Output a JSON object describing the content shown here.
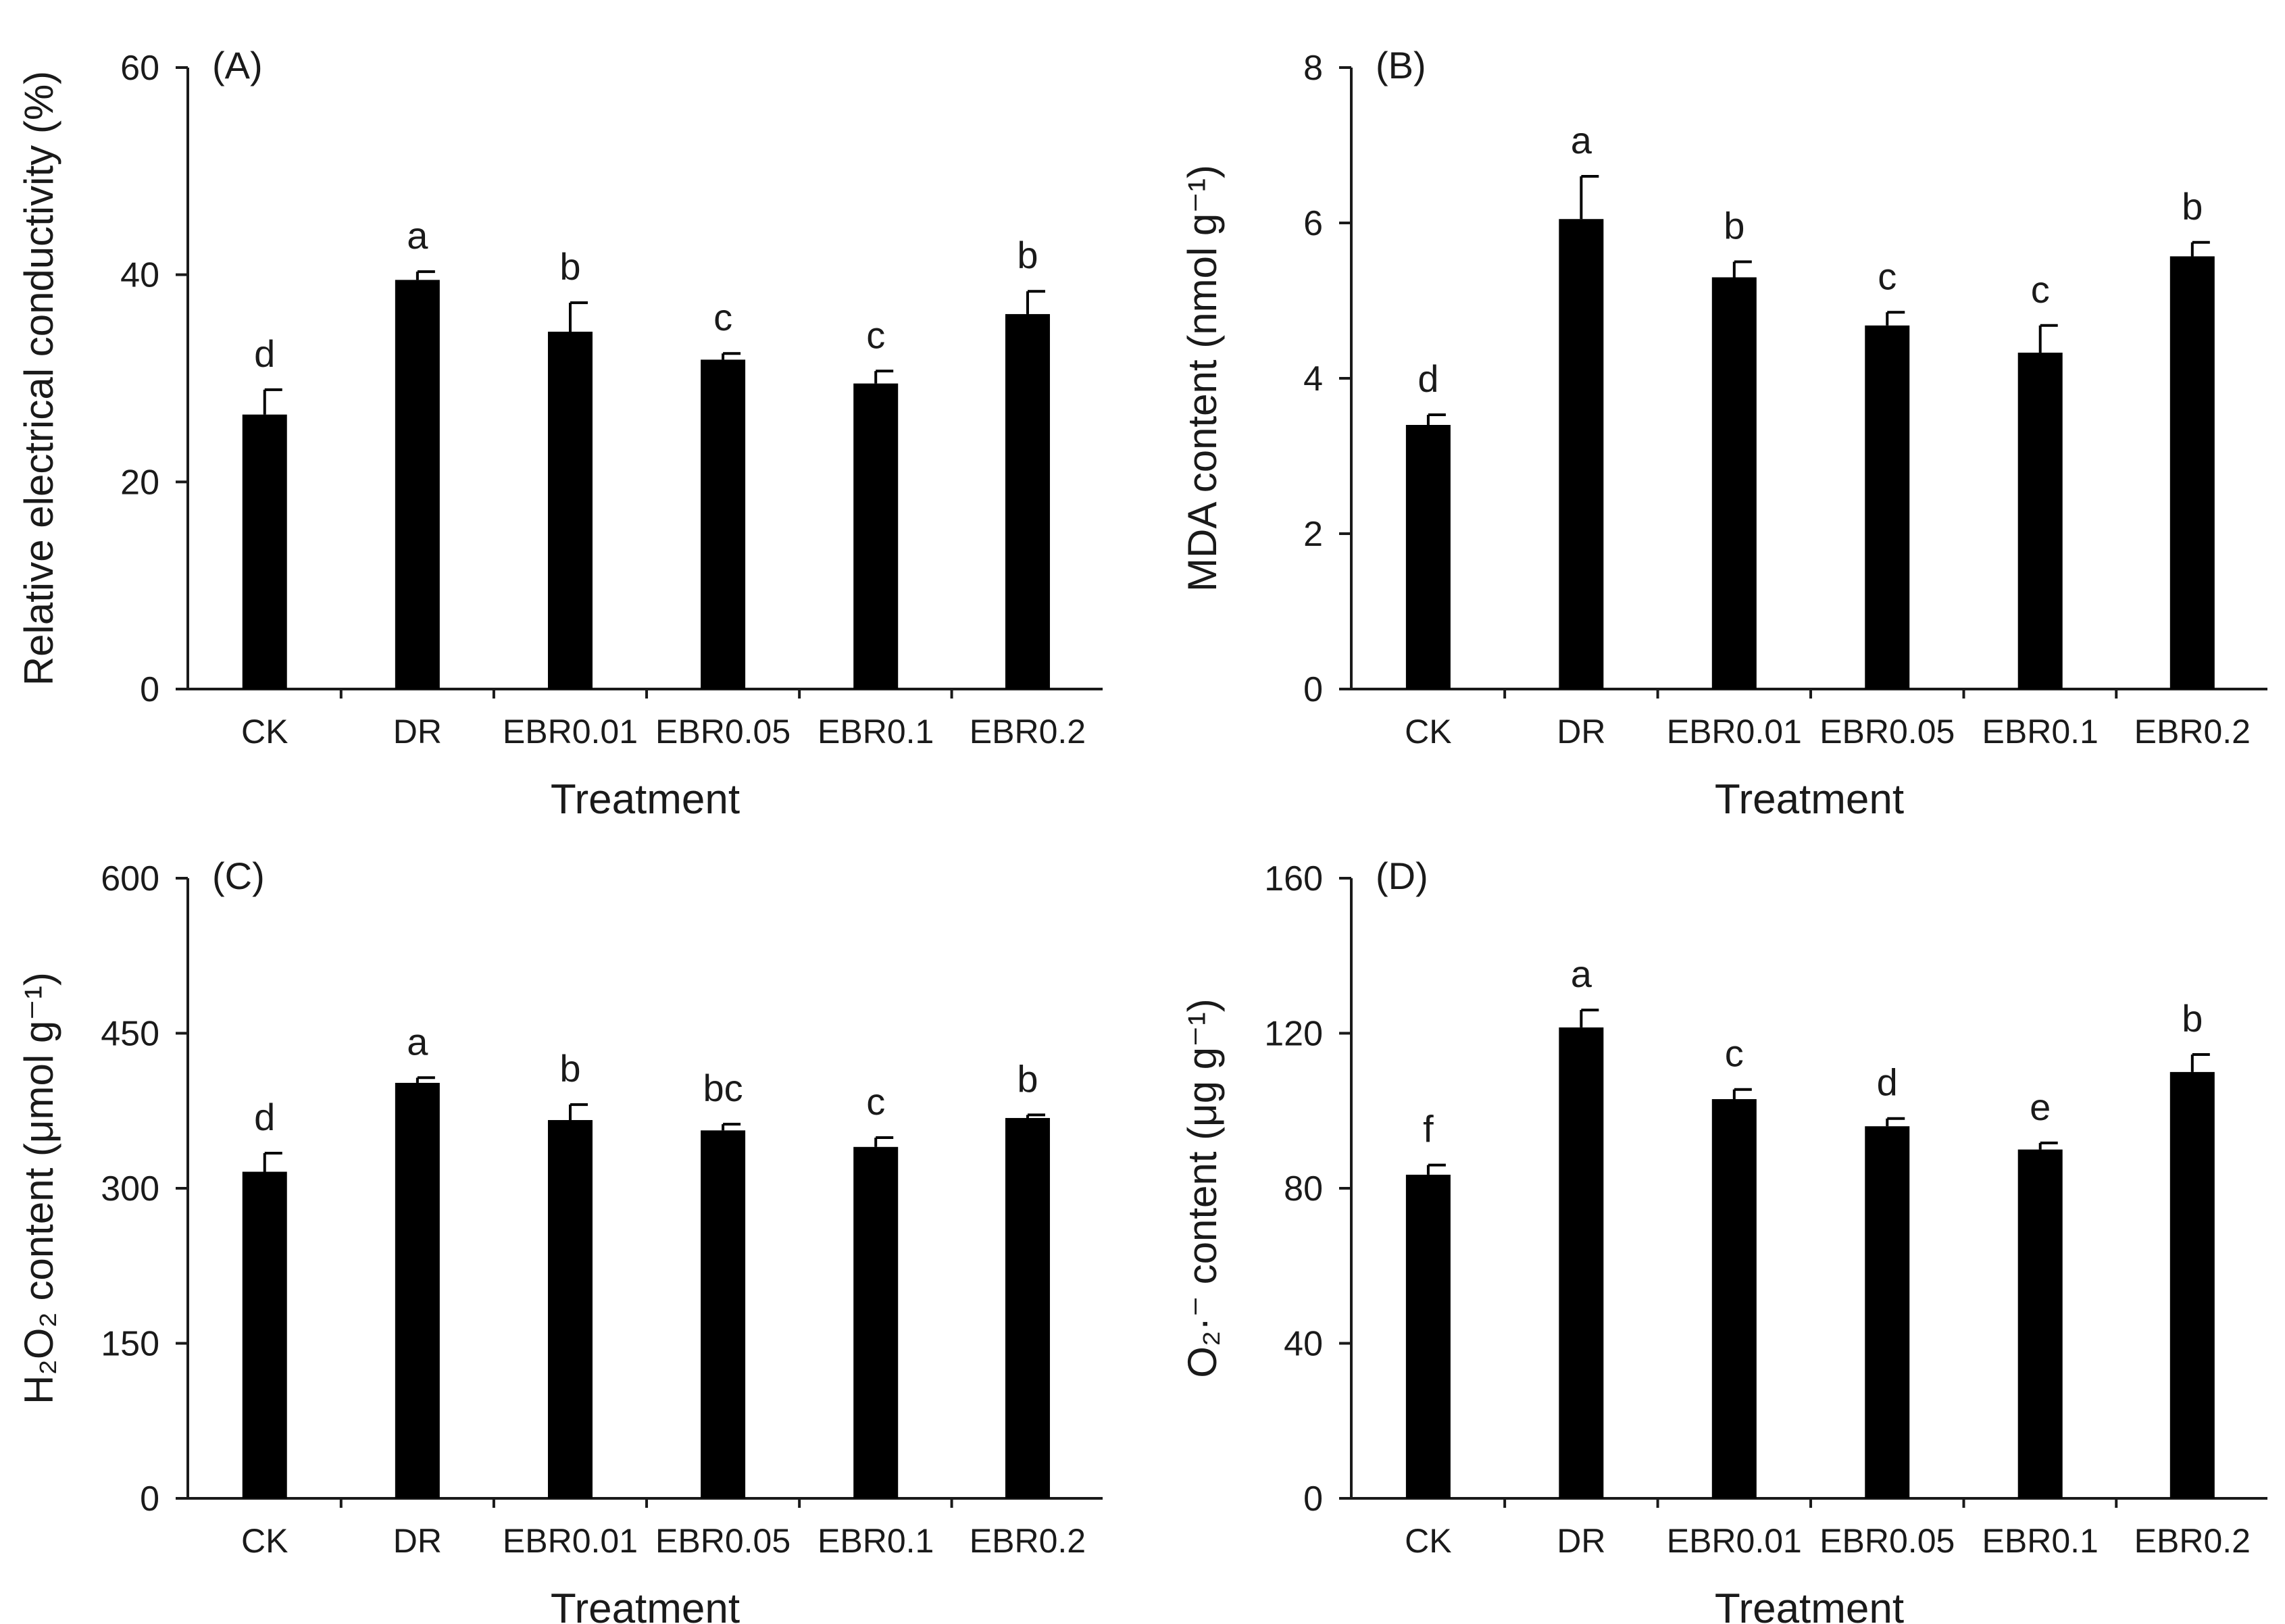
{
  "figure": {
    "categories": [
      "CK",
      "DR",
      "EBR0.01",
      "EBR0.05",
      "EBR0.1",
      "EBR0.2"
    ],
    "xlabel": "Treatment"
  },
  "chart_data": [
    {
      "type": "bar",
      "panel": "(A)",
      "title": "",
      "ylabel": "Relative electrical conductivity (%)",
      "xlabel": "Treatment",
      "categories": [
        "CK",
        "DR",
        "EBR0.01",
        "EBR0.05",
        "EBR0.1",
        "EBR0.2"
      ],
      "values": [
        26.5,
        39.5,
        34.5,
        31.8,
        29.5,
        36.2
      ],
      "errors": [
        2.4,
        0.8,
        2.8,
        0.6,
        1.2,
        2.2
      ],
      "significance": [
        "d",
        "a",
        "b",
        "c",
        "c",
        "b"
      ],
      "ylim": [
        0,
        60
      ],
      "yticks": [
        "0",
        "20",
        "40",
        "60"
      ]
    },
    {
      "type": "bar",
      "panel": "(B)",
      "title": "",
      "ylabel": "MDA content (nmol g⁻¹)",
      "xlabel": "Treatment",
      "categories": [
        "CK",
        "DR",
        "EBR0.01",
        "EBR0.05",
        "EBR0.1",
        "EBR0.2"
      ],
      "values": [
        3.4,
        6.05,
        5.3,
        4.68,
        4.33,
        5.57
      ],
      "errors": [
        0.13,
        0.55,
        0.2,
        0.17,
        0.35,
        0.18
      ],
      "significance": [
        "d",
        "a",
        "b",
        "c",
        "c",
        "b"
      ],
      "ylim": [
        0,
        8
      ],
      "yticks": [
        "0",
        "2",
        "4",
        "6",
        "8"
      ]
    },
    {
      "type": "bar",
      "panel": "(C)",
      "title": "",
      "ylabel": "H₂O₂ content (μmol g⁻¹)",
      "xlabel": "Treatment",
      "categories": [
        "CK",
        "DR",
        "EBR0.01",
        "EBR0.05",
        "EBR0.1",
        "EBR0.2"
      ],
      "values": [
        316,
        402,
        366,
        356,
        340,
        368
      ],
      "errors": [
        18,
        5,
        15,
        6,
        9,
        3
      ],
      "significance": [
        "d",
        "a",
        "b",
        "bc",
        "c",
        "b"
      ],
      "ylim": [
        0,
        600
      ],
      "yticks": [
        "0",
        "150",
        "300",
        "450",
        "600"
      ]
    },
    {
      "type": "bar",
      "panel": "(D)",
      "title": "",
      "ylabel": "O₂·⁻ content (μg g⁻¹)",
      "xlabel": "Treatment",
      "categories": [
        "CK",
        "DR",
        "EBR0.01",
        "EBR0.05",
        "EBR0.1",
        "EBR0.2"
      ],
      "values": [
        83.5,
        121.5,
        103,
        96,
        90,
        110
      ],
      "errors": [
        2.5,
        4.5,
        2.5,
        2.0,
        1.7,
        4.5
      ],
      "significance": [
        "f",
        "a",
        "c",
        "d",
        "e",
        "b"
      ],
      "ylim": [
        0,
        160
      ],
      "yticks": [
        "0",
        "40",
        "80",
        "120",
        "160"
      ]
    }
  ]
}
